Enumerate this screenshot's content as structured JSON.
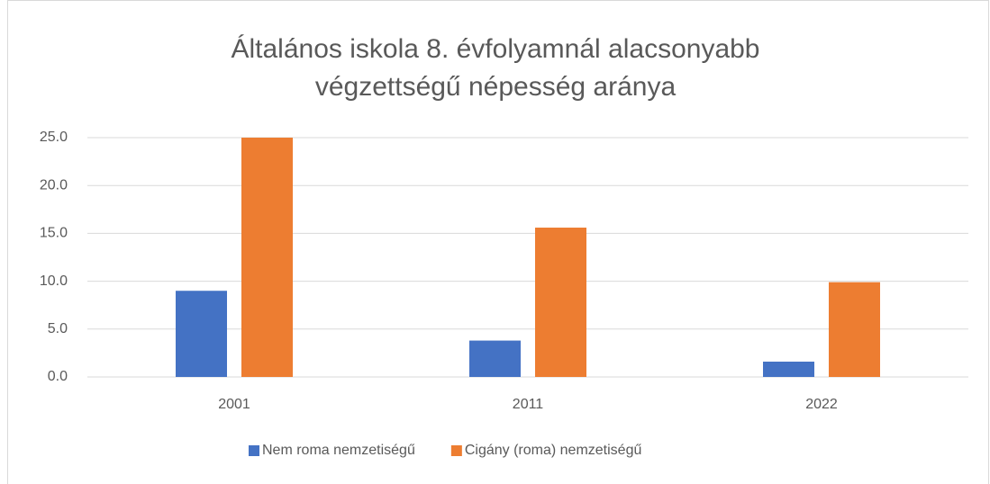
{
  "chart_data": {
    "type": "bar",
    "title": "Általános iskola 8. évfolyamnál alacsonyabb végzettségű népesség aránya",
    "categories": [
      "2001",
      "2011",
      "2022"
    ],
    "series": [
      {
        "name": "Nem roma nemzetiségű",
        "color": "#4472c4",
        "values": [
          9.0,
          3.8,
          1.6
        ]
      },
      {
        "name": "Cigány (roma) nemzetiségű",
        "color": "#ed7d31",
        "values": [
          25.0,
          15.6,
          9.9
        ]
      }
    ],
    "ylim": [
      0,
      25
    ],
    "yticks": [
      {
        "value": 0,
        "label": "0.0"
      },
      {
        "value": 5,
        "label": "5.0"
      },
      {
        "value": 10,
        "label": "10.0"
      },
      {
        "value": 15,
        "label": "15.0"
      },
      {
        "value": 20,
        "label": "20.0"
      },
      {
        "value": 25,
        "label": "25.0"
      }
    ],
    "grid": true,
    "legend": "bottom"
  }
}
